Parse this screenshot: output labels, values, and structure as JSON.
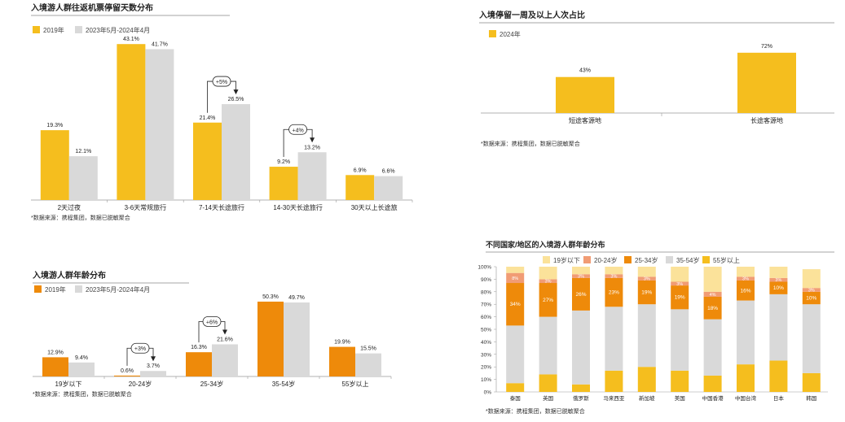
{
  "colors": {
    "yellow": "#F5BE1E",
    "orange": "#EE8A0A",
    "gray": "#D9D9D9",
    "light_yellow": "#FBE29A",
    "salmon": "#F19C74",
    "text": "#222222",
    "axis": "#999999"
  },
  "chart_data": [
    {
      "id": "c1",
      "type": "bar",
      "title": "入境游人群往返机票停留天数分布",
      "legend": [
        "2019年",
        "2023年5月-2024年4月"
      ],
      "categories": [
        "2天过夜",
        "3-6天常规旅行",
        "7-14天长途旅行",
        "14-30天长途旅行",
        "30天以上长途旅"
      ],
      "series": [
        {
          "name": "2019年",
          "values": [
            19.3,
            43.1,
            21.4,
            9.2,
            6.9
          ]
        },
        {
          "name": "2023年5月-2024年4月",
          "values": [
            12.1,
            41.7,
            26.5,
            13.2,
            6.6
          ]
        }
      ],
      "value_labels": [
        [
          "19.3%",
          "43.1%",
          "21.4%",
          "9.2%",
          "6.9%"
        ],
        [
          "12.1%",
          "41.7%",
          "26.5%",
          "13.2%",
          "6.6%"
        ]
      ],
      "annotations": [
        {
          "category_index": 2,
          "text": "+5%"
        },
        {
          "category_index": 3,
          "text": "+4%"
        }
      ],
      "source": "*数据来源：携程集团，数据已脱敏聚合"
    },
    {
      "id": "c2",
      "type": "bar",
      "title": "入境游人群年龄分布",
      "legend": [
        "2019年",
        "2023年5月-2024年4月"
      ],
      "categories": [
        "19岁以下",
        "20-24岁",
        "25-34岁",
        "35-54岁",
        "55岁以上"
      ],
      "series": [
        {
          "name": "2019年",
          "values": [
            12.9,
            0.6,
            16.3,
            50.3,
            19.9
          ]
        },
        {
          "name": "2023年5月-2024年4月",
          "values": [
            9.4,
            3.7,
            21.6,
            49.7,
            15.5
          ]
        }
      ],
      "value_labels": [
        [
          "12.9%",
          "0.6%",
          "16.3%",
          "50.3%",
          "19.9%"
        ],
        [
          "9.4%",
          "3.7%",
          "21.6%",
          "49.7%",
          "15.5%"
        ]
      ],
      "annotations": [
        {
          "category_index": 1,
          "text": "+3%"
        },
        {
          "category_index": 2,
          "text": "+6%"
        }
      ],
      "source": "*数据来源：携程集团，数据已脱敏聚合"
    },
    {
      "id": "c3",
      "type": "bar",
      "title": "入境停留一周及以上人次占比",
      "legend": [
        "2024年"
      ],
      "categories": [
        "短途客源地",
        "长途客源地"
      ],
      "series": [
        {
          "name": "2024年",
          "values": [
            43,
            72
          ]
        }
      ],
      "value_labels": [
        [
          "43%",
          "72%"
        ]
      ],
      "source": "*数据来源：携程集团，数据已脱敏聚合"
    },
    {
      "id": "c4",
      "type": "bar",
      "stacked": true,
      "title": "不同国家/地区的入境游人群年龄分布",
      "legend": [
        "19岁以下",
        "20-24岁",
        "25-34岁",
        "35-54岁",
        "55岁以上"
      ],
      "categories": [
        "泰国",
        "英国",
        "俄罗斯",
        "马来西亚",
        "新加坡",
        "美国",
        "中国香港",
        "中国台湾",
        "日本",
        "韩国"
      ],
      "y_ticks": [
        "0%",
        "10%",
        "20%",
        "30%",
        "40%",
        "50%",
        "60%",
        "70%",
        "80%",
        "90%",
        "100%"
      ],
      "ylim": [
        0,
        100
      ],
      "stack_order": [
        "55岁以上",
        "35-54岁",
        "25-34岁",
        "20-24岁",
        "19岁以下"
      ],
      "series": [
        {
          "name": "55岁以上",
          "values": [
            7,
            14,
            6,
            17,
            20,
            17,
            13,
            22,
            25,
            15
          ]
        },
        {
          "name": "35-54岁",
          "values": [
            46,
            46,
            59,
            51,
            50,
            49,
            45,
            51,
            53,
            55
          ]
        },
        {
          "name": "25-34岁",
          "values": [
            34,
            27,
            26,
            23,
            19,
            19,
            18,
            16,
            10,
            10
          ]
        },
        {
          "name": "20-24岁",
          "values": [
            8,
            3,
            3,
            3,
            3,
            3,
            4,
            3,
            3,
            3
          ]
        },
        {
          "name": "19岁以下",
          "values": [
            5,
            10,
            6,
            6,
            8,
            12,
            20,
            8,
            9,
            15
          ]
        }
      ],
      "segment_labels": {
        "25-34岁": [
          "34%",
          "27%",
          "26%",
          "23%",
          "19%",
          "19%",
          "18%",
          "16%",
          "10%",
          "10%"
        ],
        "20-24岁": [
          "8%",
          "3%",
          "3%",
          "3%",
          "3%",
          "3%",
          "4%",
          "3%",
          "3%",
          "3%"
        ]
      },
      "source": "*数据来源：携程集团，数据已脱敏聚合"
    }
  ]
}
